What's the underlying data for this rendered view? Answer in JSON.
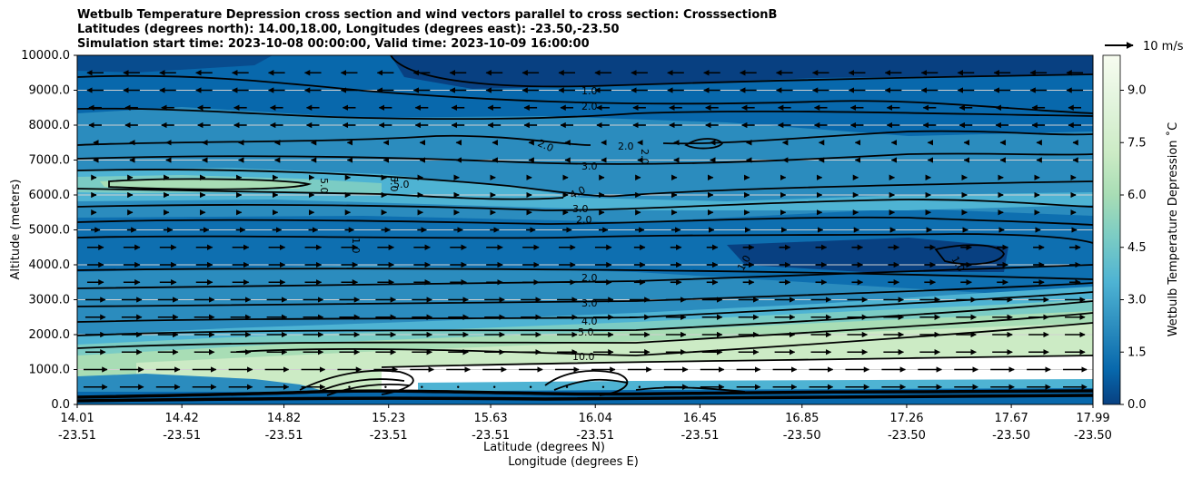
{
  "chart_data": {
    "type": "contour",
    "title_lines": [
      "Wetbulb Temperature Depression cross section and wind vectors parallel to cross section: CrosssectionB",
      "Latitudes (degrees north): 14.00,18.00, Longitudes (degrees east): -23.50,-23.50",
      "Simulation start time: 2023-10-08 00:00:00, Valid time: 2023-10-09 16:00:00"
    ],
    "ylabel": "Altitude (meters)",
    "xlabel_lat": "Latitude (degrees N)",
    "xlabel_lon": "Longitude (degrees E)",
    "ylim": [
      0,
      10000
    ],
    "yticks": [
      "0.0",
      "1000.0",
      "2000.0",
      "3000.0",
      "4000.0",
      "5000.0",
      "6000.0",
      "7000.0",
      "8000.0",
      "9000.0",
      "10000.0"
    ],
    "x_ticks": [
      {
        "lat": "14.01",
        "lon": "-23.51"
      },
      {
        "lat": "14.42",
        "lon": "-23.51"
      },
      {
        "lat": "14.82",
        "lon": "-23.51"
      },
      {
        "lat": "15.23",
        "lon": "-23.51"
      },
      {
        "lat": "15.63",
        "lon": "-23.51"
      },
      {
        "lat": "16.04",
        "lon": "-23.51"
      },
      {
        "lat": "16.45",
        "lon": "-23.51"
      },
      {
        "lat": "16.85",
        "lon": "-23.50"
      },
      {
        "lat": "17.26",
        "lon": "-23.50"
      },
      {
        "lat": "17.67",
        "lon": "-23.50"
      },
      {
        "lat": "17.99",
        "lon": "-23.50"
      }
    ],
    "colorbar": {
      "label": "Wetbulb Temperature Depression ˚C",
      "range": [
        0,
        10
      ],
      "ticks": [
        "0.0",
        "1.5",
        "3.0",
        "4.5",
        "6.0",
        "7.5",
        "9.0"
      ],
      "colormap": [
        "#084081",
        "#0868ac",
        "#2b8cbe",
        "#4eb3d3",
        "#7bccc4",
        "#a8ddb5",
        "#ccebc5",
        "#e0f3db",
        "#f7fcf0"
      ]
    },
    "quiver_key": "10 m/s",
    "contour_labels": [
      "1.0",
      "2.0",
      "2.0",
      "2.0",
      "2.0",
      "3.0",
      "4.0",
      "5.0",
      "5.0",
      "5.0",
      "3.0",
      "2.0",
      "1.0",
      "2.0",
      "3.0",
      "4.0",
      "5.0",
      "10.0",
      "1.0",
      "1.0"
    ],
    "altitude_bands": [
      {
        "alt": 500,
        "wetbulb_depression": 2.5,
        "wind": "eastward"
      },
      {
        "alt": 1500,
        "wetbulb_depression": 8.5,
        "wind": "eastward"
      },
      {
        "alt": 3000,
        "wetbulb_depression": 3.5,
        "wind": "eastward"
      },
      {
        "alt": 4200,
        "wetbulb_depression": 1.2,
        "wind": "eastward"
      },
      {
        "alt": 5500,
        "wetbulb_depression": 2.5,
        "wind": "weak"
      },
      {
        "alt": 6200,
        "wetbulb_depression": 5.5,
        "wind": "weak"
      },
      {
        "alt": 8000,
        "wetbulb_depression": 2.0,
        "wind": "westward"
      },
      {
        "alt": 9500,
        "wetbulb_depression": 0.8,
        "wind": "westward"
      }
    ]
  }
}
